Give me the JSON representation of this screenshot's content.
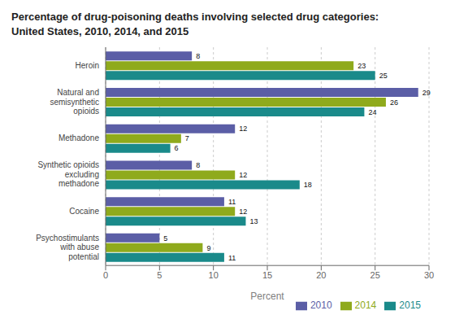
{
  "chart_data": {
    "type": "bar",
    "orientation": "horizontal",
    "title": "Percentage of drug-poisoning deaths involving selected drug categories:",
    "subtitle": "United States, 2010, 2014, and 2015",
    "categories": [
      "Heroin",
      "Natural and\nsemisynthetic\nopioids",
      "Methadone",
      "Synthetic opioids\nexcluding\nmethadone",
      "Cocaine",
      "Psychostimulants\nwith abuse\npotential"
    ],
    "series": [
      {
        "name": "2010",
        "color": "#5b5ea6",
        "values": [
          8,
          29,
          12,
          8,
          11,
          5
        ]
      },
      {
        "name": "2014",
        "color": "#8faa1c",
        "values": [
          23,
          26,
          7,
          12,
          12,
          9
        ]
      },
      {
        "name": "2015",
        "color": "#1a8a8a",
        "values": [
          25,
          24,
          6,
          18,
          13,
          11
        ]
      }
    ],
    "xlabel": "Percent",
    "xlim": [
      0,
      30
    ],
    "xticks": [
      0,
      5,
      10,
      15,
      20,
      25,
      30
    ],
    "grid": true,
    "data_labels": true,
    "legend": "lower right"
  }
}
